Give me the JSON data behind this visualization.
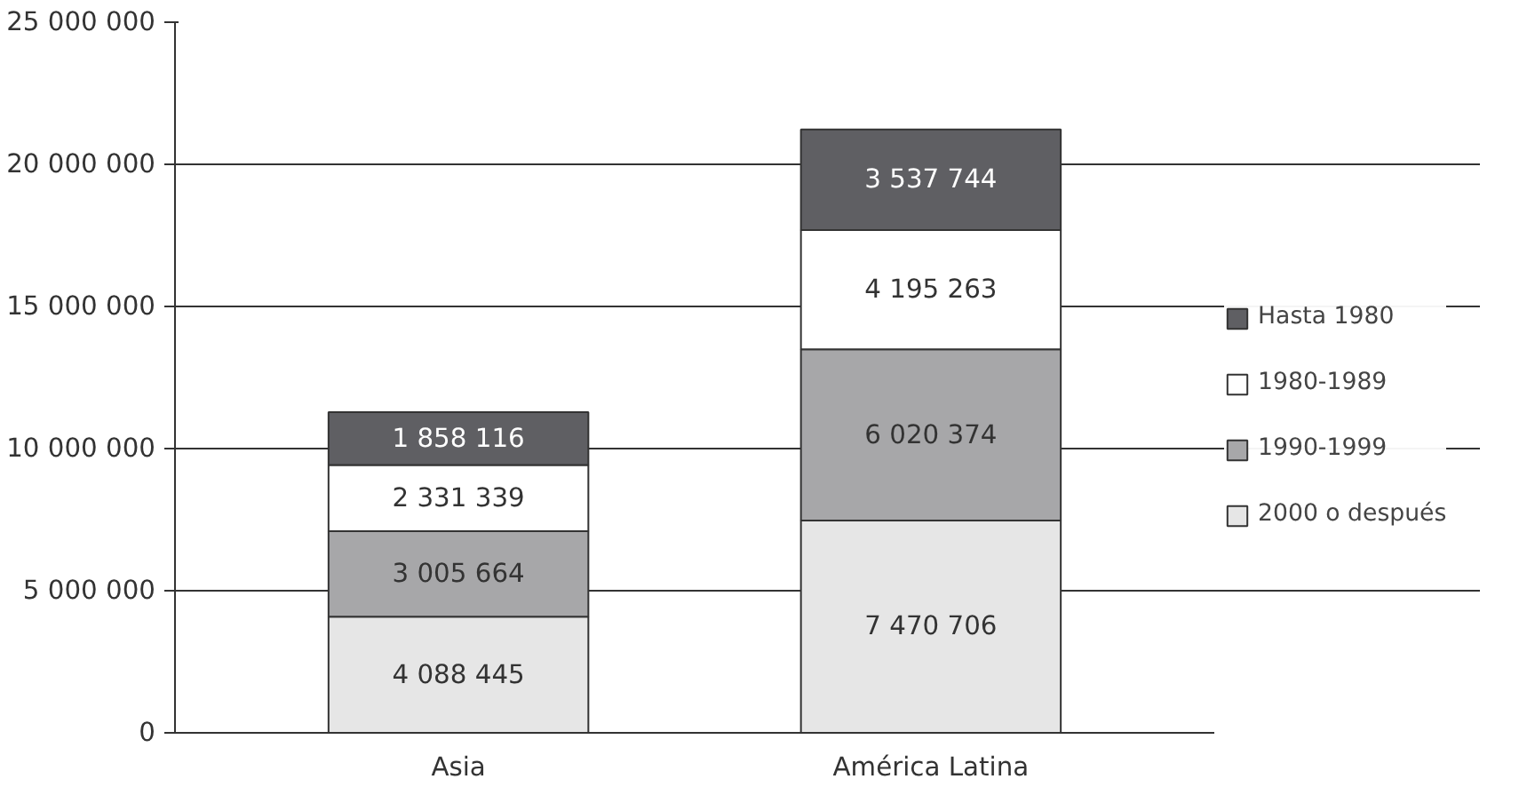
{
  "chart_data": {
    "type": "bar",
    "stacked": true,
    "categories": [
      "Asia",
      "América Latina"
    ],
    "series": [
      {
        "name": "2000 o después",
        "color": "#e6e6e6",
        "values": [
          4088445,
          7470706
        ],
        "value_labels": [
          "4 088 445",
          "7 470 706"
        ]
      },
      {
        "name": "1990-1999",
        "color": "#a7a7a9",
        "values": [
          3005664,
          6020374
        ],
        "value_labels": [
          "3 005 664",
          "6 020 374"
        ]
      },
      {
        "name": "1980-1989",
        "color": "#ffffff",
        "values": [
          2331339,
          4195263
        ],
        "value_labels": [
          "2 331 339",
          "4 195 263"
        ]
      },
      {
        "name": "Hasta 1980",
        "color": "#5f5f63",
        "values": [
          1858116,
          3537744
        ],
        "value_labels": [
          "1 858 116",
          "3 537 744"
        ]
      }
    ],
    "ylim": [
      0,
      25000000
    ],
    "yticks": [
      {
        "value": 0,
        "label": "0"
      },
      {
        "value": 5000000,
        "label": "5 000 000"
      },
      {
        "value": 10000000,
        "label": "10 000 000"
      },
      {
        "value": 15000000,
        "label": "15 000 000"
      },
      {
        "value": 20000000,
        "label": "20 000 000"
      },
      {
        "value": 25000000,
        "label": "25 000 000"
      }
    ],
    "grid": "y",
    "legend": "right"
  }
}
